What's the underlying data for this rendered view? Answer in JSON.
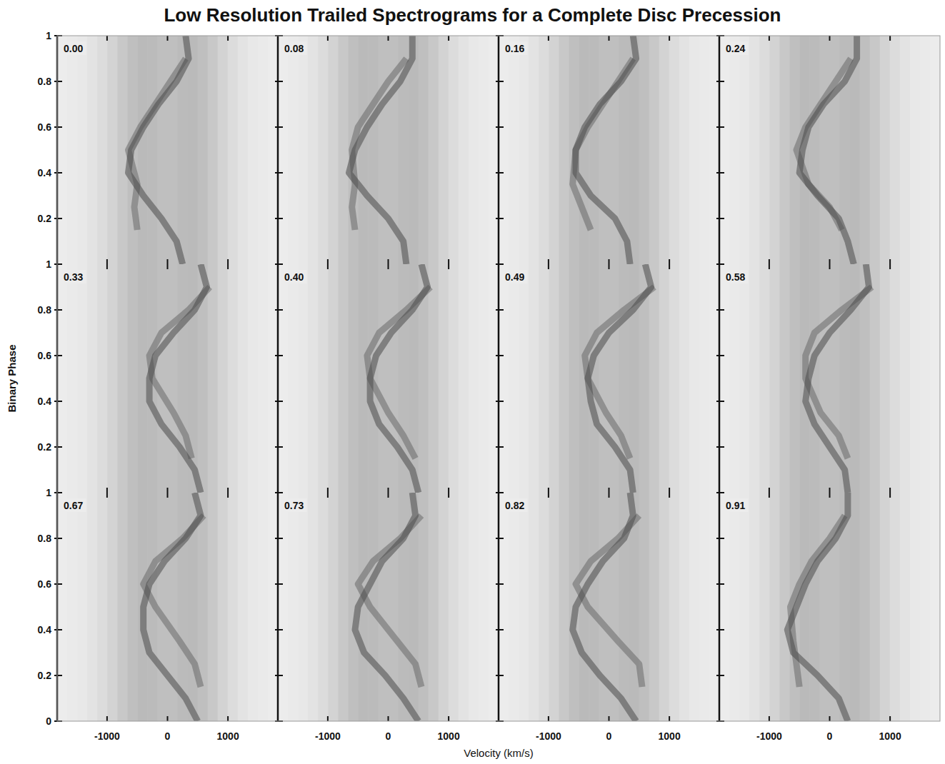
{
  "chart_data": {
    "type": "heatmap",
    "title": "Low Resolution Trailed Spectrograms for a Complete Disc Precession",
    "x_label": "Velocity (km/s)",
    "y_label": "Binary Phase",
    "xlim": [
      -1826,
      1826
    ],
    "ylim": [
      0,
      1
    ],
    "xticks": [
      -1000,
      0,
      1000
    ],
    "yticks": [
      0,
      0.2,
      0.4,
      0.6,
      0.8,
      1
    ],
    "velocity_bins": [
      -1826,
      -1660,
      -1494,
      -1328,
      -1162,
      -996,
      -830,
      -664,
      -498,
      -332,
      -166,
      0,
      166,
      332,
      498,
      664,
      830,
      996,
      1162,
      1328,
      1494,
      1660,
      1826
    ],
    "profile": [
      1.0,
      1.02,
      1.05,
      1.1,
      1.18,
      1.28,
      1.4,
      1.5,
      1.56,
      1.55,
      1.5,
      1.5,
      1.55,
      1.56,
      1.5,
      1.4,
      1.28,
      1.18,
      1.1,
      1.05,
      1.02,
      1.0
    ],
    "zlim": [
      1,
      2
    ],
    "panels": [
      {
        "label": "0.00",
        "tracks": [
          {
            "phase": [
              0,
              0.1,
              0.2,
              0.3,
              0.4,
              0.5,
              0.6,
              0.7,
              0.8,
              0.9,
              1
            ],
            "velocity": [
              250,
              150,
              -100,
              -400,
              -650,
              -600,
              -400,
              -150,
              150,
              350,
              300
            ]
          },
          {
            "phase": [
              0.15,
              0.25,
              0.35,
              0.5,
              0.6,
              0.7,
              0.8,
              0.9
            ],
            "velocity": [
              -500,
              -550,
              -500,
              -650,
              -450,
              -200,
              50,
              300
            ]
          }
        ]
      },
      {
        "label": "0.08",
        "tracks": [
          {
            "phase": [
              0,
              0.1,
              0.2,
              0.3,
              0.4,
              0.5,
              0.6,
              0.7,
              0.8,
              0.9,
              1
            ],
            "velocity": [
              300,
              250,
              0,
              -350,
              -650,
              -550,
              -350,
              -100,
              200,
              400,
              400
            ]
          },
          {
            "phase": [
              0.15,
              0.25,
              0.35,
              0.5,
              0.6,
              0.7,
              0.8,
              0.9
            ],
            "velocity": [
              -550,
              -600,
              -550,
              -600,
              -500,
              -250,
              0,
              300
            ]
          }
        ]
      },
      {
        "label": "0.16",
        "tracks": [
          {
            "phase": [
              0,
              0.1,
              0.2,
              0.3,
              0.4,
              0.5,
              0.6,
              0.7,
              0.8,
              0.9,
              1
            ],
            "velocity": [
              350,
              300,
              100,
              -300,
              -550,
              -550,
              -400,
              -150,
              200,
              450,
              400
            ]
          },
          {
            "phase": [
              0.15,
              0.25,
              0.35,
              0.5,
              0.6,
              0.7,
              0.8,
              0.9
            ],
            "velocity": [
              -300,
              -450,
              -600,
              -550,
              -350,
              -100,
              150,
              400
            ]
          }
        ]
      },
      {
        "label": "0.24",
        "tracks": [
          {
            "phase": [
              0,
              0.1,
              0.2,
              0.3,
              0.4,
              0.5,
              0.6,
              0.7,
              0.8,
              0.9,
              1
            ],
            "velocity": [
              400,
              300,
              150,
              -200,
              -500,
              -450,
              -350,
              -100,
              250,
              450,
              450
            ]
          },
          {
            "phase": [
              0.15,
              0.25,
              0.35,
              0.5,
              0.6,
              0.7,
              0.8,
              0.9
            ],
            "velocity": [
              200,
              0,
              -350,
              -550,
              -400,
              -150,
              100,
              350
            ]
          }
        ]
      },
      {
        "label": "0.33",
        "tracks": [
          {
            "phase": [
              0,
              0.1,
              0.2,
              0.3,
              0.4,
              0.5,
              0.6,
              0.7,
              0.8,
              0.9,
              1
            ],
            "velocity": [
              550,
              450,
              200,
              -100,
              -300,
              -300,
              -200,
              100,
              450,
              650,
              550
            ]
          },
          {
            "phase": [
              0.15,
              0.25,
              0.35,
              0.5,
              0.6,
              0.7,
              0.8,
              0.9
            ],
            "velocity": [
              400,
              300,
              100,
              -250,
              -300,
              -100,
              350,
              700
            ]
          }
        ]
      },
      {
        "label": "0.40",
        "tracks": [
          {
            "phase": [
              0,
              0.1,
              0.2,
              0.3,
              0.4,
              0.5,
              0.6,
              0.7,
              0.8,
              0.9,
              1
            ],
            "velocity": [
              500,
              400,
              150,
              -150,
              -300,
              -300,
              -200,
              50,
              400,
              650,
              550
            ]
          },
          {
            "phase": [
              0.15,
              0.25,
              0.35,
              0.5,
              0.6,
              0.7,
              0.8,
              0.9
            ],
            "velocity": [
              450,
              250,
              0,
              -300,
              -350,
              -150,
              300,
              700
            ]
          }
        ]
      },
      {
        "label": "0.49",
        "tracks": [
          {
            "phase": [
              0,
              0.1,
              0.2,
              0.3,
              0.4,
              0.5,
              0.6,
              0.7,
              0.8,
              0.9,
              1
            ],
            "velocity": [
              400,
              350,
              100,
              -200,
              -300,
              -350,
              -250,
              0,
              400,
              700,
              600
            ]
          },
          {
            "phase": [
              0.15,
              0.25,
              0.35,
              0.5,
              0.6,
              0.7,
              0.8,
              0.9
            ],
            "velocity": [
              350,
              200,
              -50,
              -350,
              -400,
              -200,
              250,
              750
            ]
          }
        ]
      },
      {
        "label": "0.58",
        "tracks": [
          {
            "phase": [
              0,
              0.1,
              0.2,
              0.3,
              0.4,
              0.5,
              0.6,
              0.7,
              0.8,
              0.9,
              1
            ],
            "velocity": [
              300,
              250,
              0,
              -250,
              -400,
              -350,
              -250,
              0,
              350,
              650,
              600
            ]
          },
          {
            "phase": [
              0.15,
              0.25,
              0.35,
              0.5,
              0.6,
              0.7,
              0.8,
              0.9
            ],
            "velocity": [
              300,
              150,
              -150,
              -400,
              -400,
              -250,
              200,
              700
            ]
          }
        ]
      },
      {
        "label": "0.67",
        "tracks": [
          {
            "phase": [
              0,
              0.1,
              0.2,
              0.3,
              0.4,
              0.5,
              0.6,
              0.7,
              0.8,
              0.9,
              1
            ],
            "velocity": [
              500,
              300,
              0,
              -300,
              -400,
              -400,
              -300,
              -50,
              300,
              550,
              450
            ]
          },
          {
            "phase": [
              0.15,
              0.25,
              0.35,
              0.5,
              0.6,
              0.7,
              0.8,
              0.9
            ],
            "velocity": [
              550,
              450,
              200,
              -200,
              -400,
              -200,
              250,
              600
            ]
          }
        ]
      },
      {
        "label": "0.73",
        "tracks": [
          {
            "phase": [
              0,
              0.1,
              0.2,
              0.3,
              0.4,
              0.5,
              0.6,
              0.7,
              0.8,
              0.9,
              1
            ],
            "velocity": [
              500,
              250,
              -50,
              -400,
              -550,
              -500,
              -300,
              -100,
              250,
              450,
              400
            ]
          },
          {
            "phase": [
              0.15,
              0.25,
              0.35,
              0.5,
              0.6,
              0.7,
              0.8,
              0.9
            ],
            "velocity": [
              550,
              450,
              150,
              -300,
              -500,
              -250,
              200,
              550
            ]
          }
        ]
      },
      {
        "label": "0.82",
        "tracks": [
          {
            "phase": [
              0,
              0.1,
              0.2,
              0.3,
              0.4,
              0.5,
              0.6,
              0.7,
              0.8,
              0.9,
              1
            ],
            "velocity": [
              450,
              200,
              -150,
              -450,
              -600,
              -550,
              -350,
              -100,
              250,
              400,
              350
            ]
          },
          {
            "phase": [
              0.15,
              0.25,
              0.35,
              0.5,
              0.6,
              0.7,
              0.8,
              0.9
            ],
            "velocity": [
              550,
              500,
              150,
              -350,
              -550,
              -300,
              150,
              500
            ]
          }
        ]
      },
      {
        "label": "0.91",
        "tracks": [
          {
            "phase": [
              0,
              0.1,
              0.2,
              0.3,
              0.4,
              0.5,
              0.6,
              0.7,
              0.8,
              0.9,
              1
            ],
            "velocity": [
              300,
              150,
              -200,
              -600,
              -700,
              -550,
              -400,
              -200,
              100,
              300,
              300
            ]
          },
          {
            "phase": [
              0.15,
              0.25,
              0.35,
              0.5,
              0.6,
              0.7,
              0.8,
              0.9
            ],
            "velocity": [
              -500,
              -550,
              -600,
              -650,
              -500,
              -300,
              0,
              250
            ]
          }
        ]
      }
    ]
  }
}
